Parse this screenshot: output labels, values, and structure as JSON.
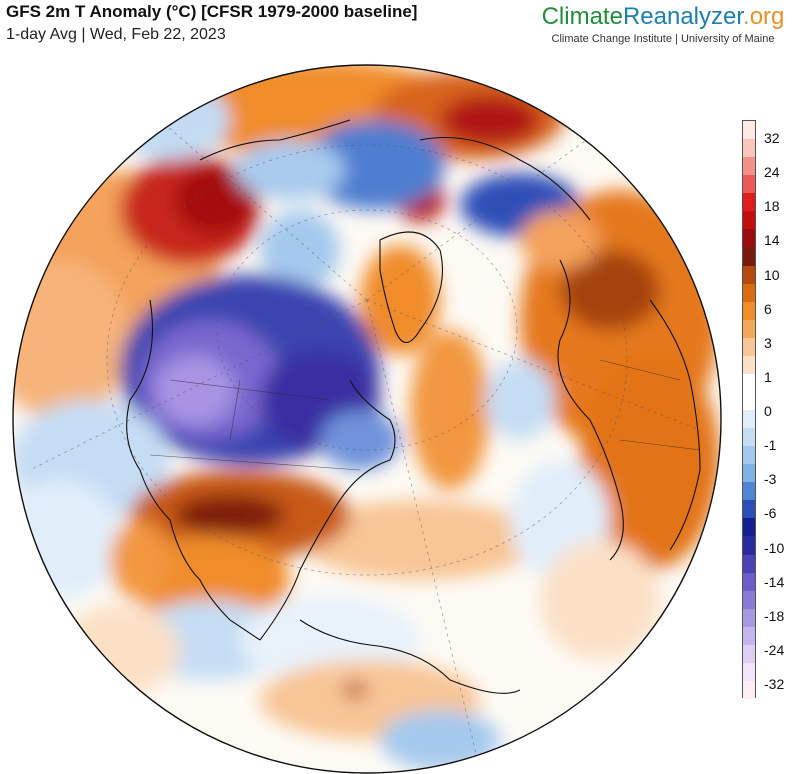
{
  "header": {
    "title": "GFS 2m T Anomaly (°C) [CFSR 1979-2000 baseline]",
    "subtitle": "1-day Avg | Wed, Feb 22, 2023"
  },
  "brand": {
    "part1": "Climate",
    "part2": "Reanalyzer",
    "part3": ".org",
    "tagline": "Climate Change Institute | University of Maine"
  },
  "colorbar": {
    "labels": [
      "32",
      "24",
      "18",
      "14",
      "10",
      "6",
      "3",
      "1",
      "0",
      "-1",
      "-3",
      "-6",
      "-10",
      "-14",
      "-18",
      "-24",
      "-32"
    ],
    "colors": [
      "#fde9e6",
      "#f9c6bb",
      "#f4908a",
      "#ec5a55",
      "#e01d1d",
      "#c40d0d",
      "#9b0d0d",
      "#7a1a0a",
      "#b54a10",
      "#d96b12",
      "#f08c2a",
      "#f5a65a",
      "#f8c595",
      "#fbe0c6",
      "#ffffff",
      "#ffffff",
      "#e1eefa",
      "#c5ddf4",
      "#a5c9ee",
      "#7fb0e6",
      "#4f86d4",
      "#2a4fb8",
      "#14208f",
      "#2a2aa0",
      "#4a43b5",
      "#6a5ec8",
      "#8a7ad6",
      "#a898e2",
      "#c4b6ec",
      "#dccff3",
      "#efe4f8",
      "#fbeef5"
    ]
  },
  "map": {
    "ocean_base": "#ffffff",
    "coastline_color": "#111111",
    "grid_color": "#555555"
  }
}
